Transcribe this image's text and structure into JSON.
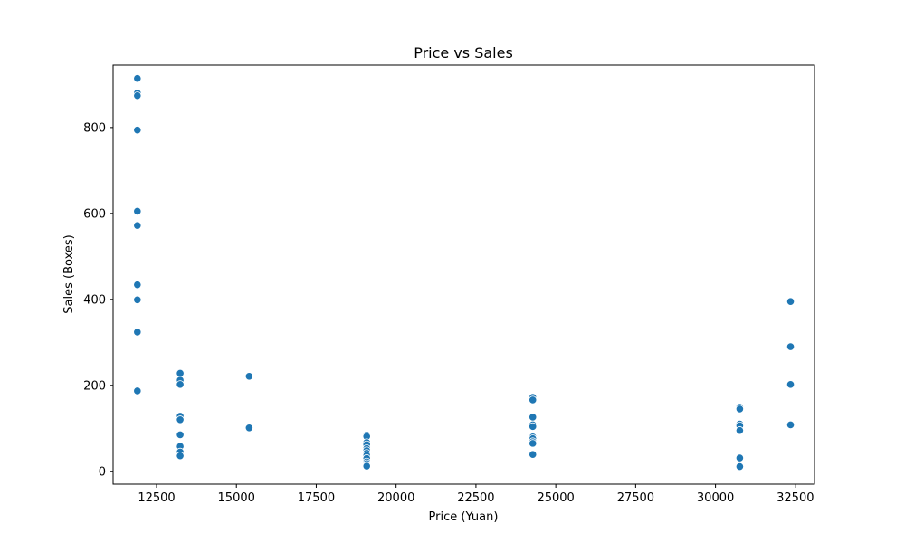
{
  "chart_data": {
    "type": "scatter",
    "title": "Price vs Sales",
    "xlabel": "Price (Yuan)",
    "ylabel": "Sales (Boxes)",
    "xlim": [
      11140,
      33100
    ],
    "ylim": [
      -30,
      945
    ],
    "xticks": [
      12500,
      15000,
      17500,
      20000,
      22500,
      25000,
      27500,
      30000,
      32500
    ],
    "yticks": [
      0,
      200,
      400,
      600,
      800
    ],
    "grid": false,
    "point_color": "#1f77b4",
    "series": [
      {
        "points": [
          [
            11900,
            914
          ],
          [
            11900,
            880
          ],
          [
            11900,
            874
          ],
          [
            11900,
            794
          ],
          [
            11900,
            605
          ],
          [
            11900,
            572
          ],
          [
            11900,
            434
          ],
          [
            11900,
            399
          ],
          [
            11900,
            324
          ],
          [
            11900,
            187
          ],
          [
            13240,
            228
          ],
          [
            13240,
            212
          ],
          [
            13240,
            202
          ],
          [
            13240,
            128
          ],
          [
            13240,
            120
          ],
          [
            13240,
            85
          ],
          [
            13240,
            58
          ],
          [
            13240,
            45
          ],
          [
            13240,
            36
          ],
          [
            15400,
            221
          ],
          [
            15400,
            101
          ],
          [
            19080,
            84
          ],
          [
            19080,
            81
          ],
          [
            19080,
            67
          ],
          [
            19080,
            62
          ],
          [
            19080,
            53
          ],
          [
            19080,
            48
          ],
          [
            19080,
            42
          ],
          [
            19080,
            37
          ],
          [
            19080,
            30
          ],
          [
            19080,
            22
          ],
          [
            19080,
            18
          ],
          [
            19080,
            14
          ],
          [
            19080,
            12
          ],
          [
            24280,
            172
          ],
          [
            24280,
            166
          ],
          [
            24280,
            126
          ],
          [
            24280,
            108
          ],
          [
            24280,
            104
          ],
          [
            24280,
            80
          ],
          [
            24280,
            76
          ],
          [
            24280,
            69
          ],
          [
            24280,
            65
          ],
          [
            24280,
            39
          ],
          [
            30760,
            149
          ],
          [
            30760,
            145
          ],
          [
            30760,
            110
          ],
          [
            30760,
            106
          ],
          [
            30760,
            95
          ],
          [
            30760,
            31
          ],
          [
            30760,
            11
          ],
          [
            32350,
            395
          ],
          [
            32350,
            290
          ],
          [
            32350,
            202
          ],
          [
            32350,
            108
          ]
        ]
      }
    ]
  }
}
